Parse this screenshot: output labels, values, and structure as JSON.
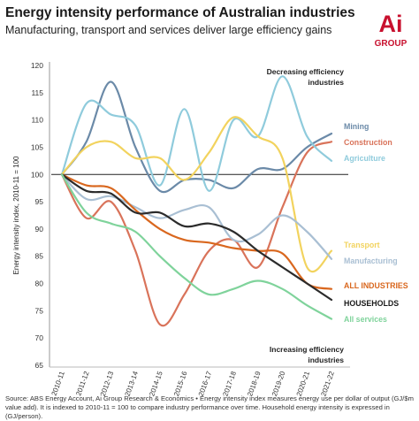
{
  "header": {
    "title": "Energy intensity performance of Australian industries",
    "subtitle": "Manufacturing, transport and services deliver large efficiency gains"
  },
  "logo": {
    "mark": "Ai",
    "text": "GROUP",
    "accent_color": "#c8102e"
  },
  "footer": {
    "note": "Source: ABS Energy Account, Ai Group Research & Economics • Energy intensity index measures energy use per dollar of output (GJ/$m value add). It is indexed to 2010-11 = 100 to compare industry performance over time. Household energy intensity is expressed in (GJ/person)."
  },
  "chart_data": {
    "type": "line",
    "title": "Energy intensity performance of Australian industries",
    "subtitle": "Manufacturing, transport and services deliver large efficiency gains",
    "xlabel": "",
    "ylabel": "Energy intensity index, 2010-11 = 100",
    "categories": [
      "2010-11",
      "2011-12",
      "2012-13",
      "2013-14",
      "2014-15",
      "2015-16",
      "2016-17",
      "2017-18",
      "2018-19",
      "2019-20",
      "2020-21",
      "2021-22"
    ],
    "ylim": [
      65,
      120
    ],
    "yticks": [
      65,
      70,
      75,
      80,
      85,
      90,
      95,
      100,
      105,
      110,
      115,
      120
    ],
    "reference_line": 100,
    "grid": false,
    "annotations": {
      "top": [
        "Decreasing efficiency",
        "industries"
      ],
      "bottom": [
        "Increasing efficiency",
        "industries"
      ]
    },
    "series": [
      {
        "name": "Mining",
        "color": "#6b8aa8",
        "values": [
          100,
          106,
          117,
          105,
          97,
          99,
          99,
          97.5,
          101,
          101,
          105,
          107.5
        ]
      },
      {
        "name": "Construction",
        "color": "#d9735a",
        "values": [
          100,
          92,
          95,
          86,
          72.5,
          78,
          86,
          88,
          83,
          94,
          104,
          106
        ]
      },
      {
        "name": "Agriculture",
        "color": "#8fcbdc",
        "values": [
          100,
          113,
          111,
          109,
          98,
          112,
          97,
          110,
          107,
          118,
          107,
          102.5
        ]
      },
      {
        "name": "Transport",
        "color": "#f2d35e",
        "values": [
          100,
          105,
          106,
          103,
          103,
          99,
          104,
          110.5,
          107,
          103,
          83,
          86
        ]
      },
      {
        "name": "Manufacturing",
        "color": "#a9bfd3",
        "values": [
          100,
          95.5,
          96,
          94,
          92,
          93.5,
          94,
          88,
          89,
          92.5,
          89.5,
          84.5
        ]
      },
      {
        "name": "ALL INDUSTRIES",
        "color": "#d9671e",
        "values": [
          100,
          98,
          97.5,
          93.5,
          90,
          88,
          87.5,
          86.5,
          86,
          85.5,
          80,
          79
        ]
      },
      {
        "name": "HOUSEHOLDS",
        "color": "#2b2b2b",
        "values": [
          100,
          97,
          96.5,
          93,
          93,
          90.5,
          91,
          89.5,
          86,
          83,
          80,
          77
        ]
      },
      {
        "name": "All services",
        "color": "#7fd39b",
        "values": [
          100,
          93,
          91,
          89.5,
          85,
          81,
          78,
          79,
          80.5,
          79,
          76,
          73.5
        ]
      }
    ]
  }
}
